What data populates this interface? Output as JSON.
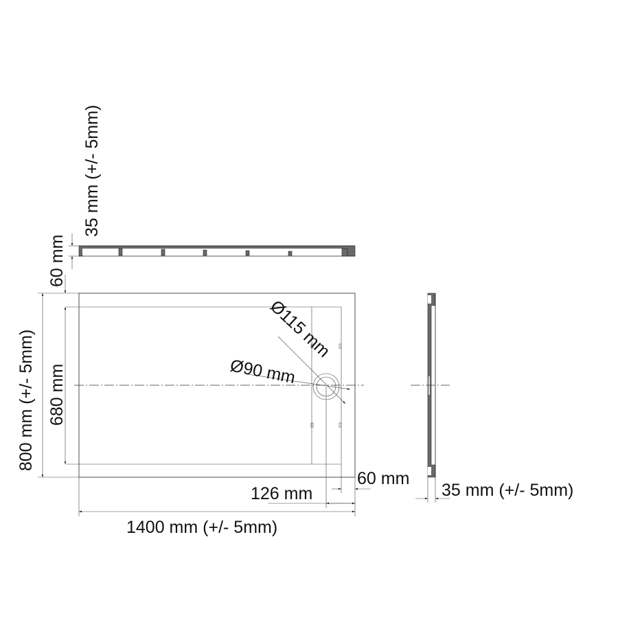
{
  "labels": {
    "height_top": "35 mm (+/- 5mm)",
    "rim_top": "60 mm",
    "width": "800 mm (+/- 5mm)",
    "inner_width": "680 mm",
    "outlet_outer": "Ø115 mm",
    "outlet_inner": "Ø90 mm",
    "rim_right": "60 mm",
    "drain_offset": "126 mm",
    "length": "1400 mm (+/- 5mm)",
    "height_side": "35 mm (+/- 5mm)"
  },
  "colors": {
    "line": "#222222",
    "hatch": "#6a6a6a"
  }
}
